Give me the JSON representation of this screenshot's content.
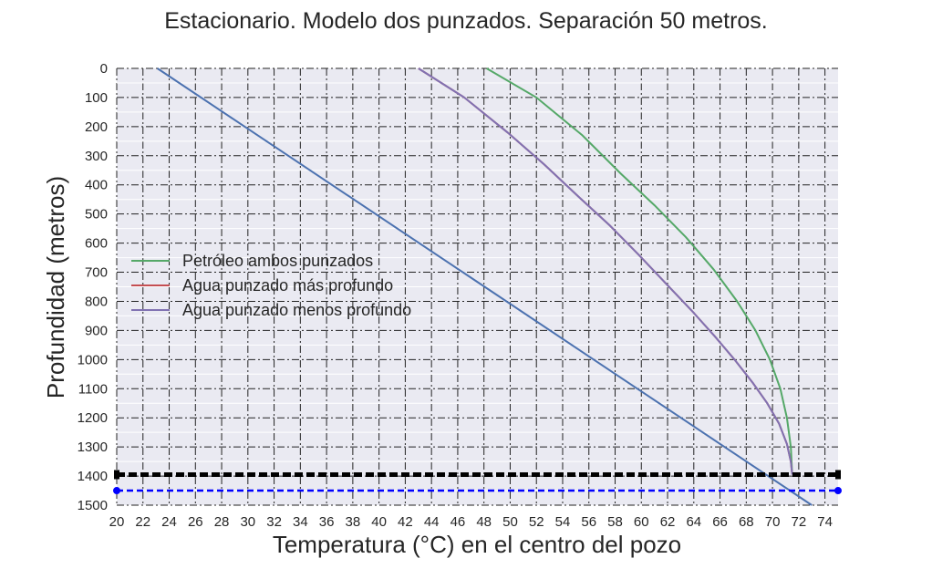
{
  "chart_data": {
    "type": "line",
    "title": "Estacionario. Modelo dos punzados. Separación 50 metros.",
    "xlabel": "Temperatura (°C) en el centro del pozo",
    "ylabel": "Profundidad (metros)",
    "xlim": [
      20,
      75
    ],
    "ylim": [
      0,
      1500
    ],
    "y_inverted": true,
    "grid": true,
    "legend": "center-left",
    "x_ticks": [
      20,
      22,
      24,
      26,
      28,
      30,
      32,
      34,
      36,
      38,
      40,
      42,
      44,
      46,
      48,
      50,
      52,
      54,
      56,
      58,
      60,
      62,
      64,
      66,
      68,
      70,
      72,
      74
    ],
    "y_ticks": [
      0,
      100,
      200,
      300,
      400,
      500,
      600,
      700,
      800,
      900,
      1000,
      1100,
      1200,
      1300,
      1400,
      1500
    ],
    "series": [
      {
        "name": "Petróleo ambos punzados",
        "color": "#55a868",
        "points": [
          [
            48.2,
            0
          ],
          [
            52,
            100
          ],
          [
            55.5,
            230
          ],
          [
            58.4,
            360
          ],
          [
            61,
            470
          ],
          [
            63.4,
            580
          ],
          [
            65.5,
            690
          ],
          [
            67.3,
            800
          ],
          [
            68.7,
            900
          ],
          [
            69.8,
            1000
          ],
          [
            70.6,
            1100
          ],
          [
            71.1,
            1200
          ],
          [
            71.4,
            1300
          ],
          [
            71.5,
            1395
          ]
        ]
      },
      {
        "name": "Agua punzado más profundo",
        "color": "#c44e52",
        "points": [
          [
            43,
            0
          ],
          [
            46.5,
            100
          ],
          [
            49.8,
            220
          ],
          [
            52.6,
            330
          ],
          [
            55.2,
            440
          ],
          [
            57.6,
            540
          ],
          [
            59.8,
            640
          ],
          [
            61.9,
            740
          ],
          [
            63.8,
            830
          ],
          [
            65.6,
            920
          ],
          [
            67.1,
            1000
          ],
          [
            68.5,
            1080
          ],
          [
            69.6,
            1150
          ],
          [
            70.5,
            1220
          ],
          [
            71.1,
            1290
          ],
          [
            71.4,
            1350
          ],
          [
            71.5,
            1395
          ]
        ]
      },
      {
        "name": "Agua punzado menos profundo",
        "color": "#8172b2",
        "points": [
          [
            43,
            0
          ],
          [
            46.5,
            100
          ],
          [
            49.8,
            220
          ],
          [
            52.6,
            330
          ],
          [
            55.2,
            440
          ],
          [
            57.6,
            540
          ],
          [
            59.8,
            640
          ],
          [
            61.9,
            740
          ],
          [
            63.8,
            830
          ],
          [
            65.6,
            920
          ],
          [
            67.1,
            1000
          ],
          [
            68.5,
            1080
          ],
          [
            69.6,
            1150
          ],
          [
            70.5,
            1220
          ],
          [
            71.1,
            1290
          ],
          [
            71.4,
            1350
          ],
          [
            71.5,
            1395
          ]
        ]
      },
      {
        "name": "",
        "color": "#4c72b0",
        "points": [
          [
            23.1,
            0
          ],
          [
            73,
            1500
          ]
        ]
      }
    ],
    "reference_lines": [
      {
        "y": 1395,
        "color": "#000000",
        "style": "dashed"
      },
      {
        "y": 1450,
        "color": "#0000ff",
        "style": "dashed"
      }
    ]
  }
}
